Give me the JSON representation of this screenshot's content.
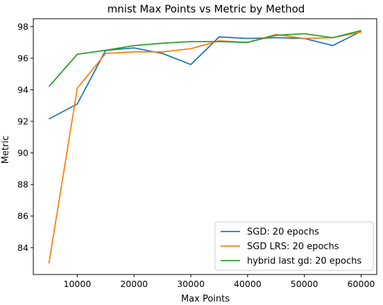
{
  "chart_data": {
    "type": "line",
    "title": "mnist Max Points vs Metric by Method",
    "xlabel": "Max Points",
    "ylabel": "Metric",
    "xlim": [
      2250,
      62750
    ],
    "ylim": [
      82.3,
      98.5
    ],
    "xticks": [
      10000,
      20000,
      30000,
      40000,
      50000,
      60000
    ],
    "xtick_labels": [
      "10000",
      "20000",
      "30000",
      "40000",
      "50000",
      "60000"
    ],
    "yticks": [
      84,
      86,
      88,
      90,
      92,
      94,
      96,
      98
    ],
    "ytick_labels": [
      "84",
      "86",
      "88",
      "90",
      "92",
      "94",
      "96",
      "98"
    ],
    "grid": false,
    "legend_position": "lower-right",
    "x": [
      5000,
      10000,
      15000,
      20000,
      25000,
      30000,
      35000,
      40000,
      45000,
      50000,
      55000,
      60000
    ],
    "series": [
      {
        "name": "SGD: 20 epochs",
        "color": "#1f77b4",
        "values": [
          92.15,
          93.1,
          96.5,
          96.65,
          96.3,
          95.6,
          97.35,
          97.25,
          97.3,
          97.25,
          96.8,
          97.7
        ]
      },
      {
        "name": "SGD LRS: 20 epochs",
        "color": "#ff7f0e",
        "values": [
          83.0,
          94.1,
          96.3,
          96.4,
          96.4,
          96.6,
          97.1,
          97.0,
          97.5,
          97.25,
          97.3,
          97.65
        ]
      },
      {
        "name": "hybrid last gd: 20 epochs",
        "color": "#2ca02c",
        "values": [
          94.2,
          96.25,
          96.5,
          96.8,
          96.95,
          97.05,
          97.05,
          97.0,
          97.45,
          97.55,
          97.3,
          97.75
        ]
      }
    ]
  }
}
